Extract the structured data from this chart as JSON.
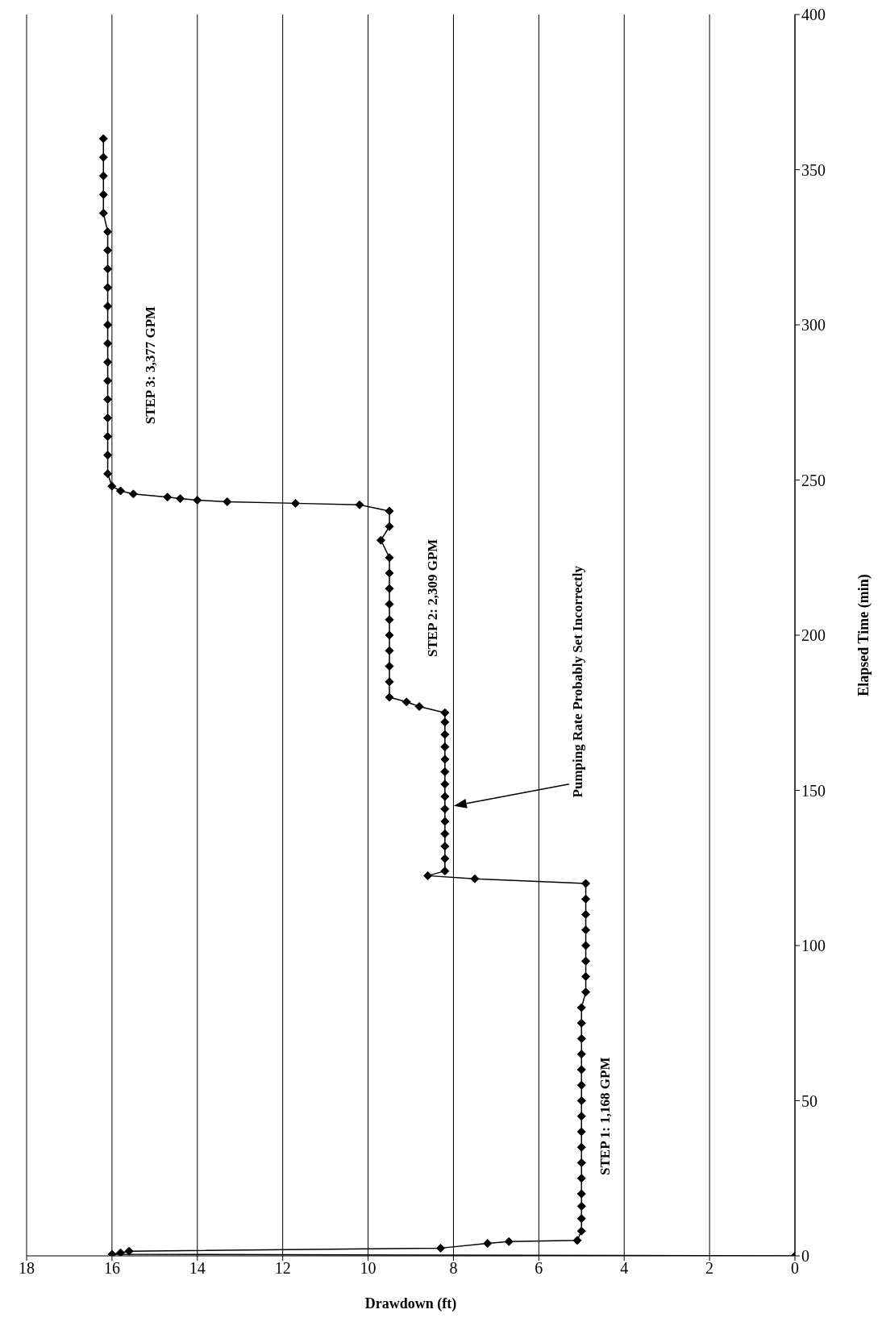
{
  "chart_data": {
    "type": "line",
    "xlabel": "Drawdown (ft)",
    "ylabel": "Elapsed Time (min)",
    "xlim": [
      18,
      0
    ],
    "xticks": [
      18,
      16,
      14,
      12,
      10,
      8,
      6,
      4,
      2,
      0
    ],
    "ylim": [
      0,
      400
    ],
    "yticks": [
      0,
      50,
      100,
      150,
      200,
      250,
      300,
      350,
      400
    ],
    "grid": "x",
    "marker": "diamond",
    "line_style": "solid",
    "legend": false,
    "series": [
      {
        "color": "#000000",
        "x": [
          0,
          16.0,
          15.8,
          15.6,
          8.3,
          7.2,
          6.7,
          5.1,
          5.0,
          5.0,
          5.0,
          5.0,
          5.0,
          5.0,
          5.0,
          5.0,
          5.0,
          5.0,
          5.0,
          5.0,
          5.0,
          5.0,
          5.0,
          5.0,
          4.9,
          4.9,
          4.9,
          4.9,
          4.9,
          4.9,
          4.9,
          4.9,
          7.5,
          8.6,
          8.2,
          8.2,
          8.2,
          8.2,
          8.2,
          8.2,
          8.2,
          8.2,
          8.2,
          8.2,
          8.2,
          8.2,
          8.2,
          8.2,
          8.8,
          9.1,
          9.5,
          9.5,
          9.5,
          9.5,
          9.5,
          9.5,
          9.5,
          9.5,
          9.5,
          9.5,
          9.7,
          9.5,
          9.5,
          10.2,
          11.7,
          13.3,
          14.0,
          14.4,
          14.7,
          15.5,
          15.8,
          16.0,
          16.1,
          16.1,
          16.1,
          16.1,
          16.1,
          16.1,
          16.1,
          16.1,
          16.1,
          16.1,
          16.1,
          16.1,
          16.1,
          16.1,
          16.2,
          16.2,
          16.2,
          16.2,
          16.2
        ],
        "values": [
          0,
          0.5,
          1,
          1.5,
          2.5,
          4,
          4.6,
          5,
          8,
          12,
          16,
          20,
          25,
          30,
          35,
          40,
          45,
          50,
          55,
          60,
          65,
          70,
          75,
          80,
          85,
          90,
          95,
          100,
          105,
          110,
          115,
          120,
          121.5,
          122.5,
          124,
          128,
          132,
          136,
          140,
          144,
          148,
          152,
          156,
          160,
          164,
          168,
          172,
          175,
          177,
          178.5,
          180,
          185,
          190,
          195,
          200,
          205,
          210,
          215,
          220,
          225,
          230.6,
          235,
          240,
          242,
          242.5,
          243,
          243.5,
          244,
          244.5,
          245.5,
          246.5,
          248,
          252,
          258,
          264,
          270,
          276,
          282,
          288,
          294,
          300,
          306,
          312,
          318,
          324,
          330,
          336,
          342,
          348,
          354,
          360
        ]
      }
    ],
    "annotations": [
      "STEP 1: 1,168 GPM",
      "STEP 2: 2,309 GPM",
      "STEP 3: 3,377 GPM",
      "Pumping Rate Probably Set Incorrectly"
    ]
  }
}
